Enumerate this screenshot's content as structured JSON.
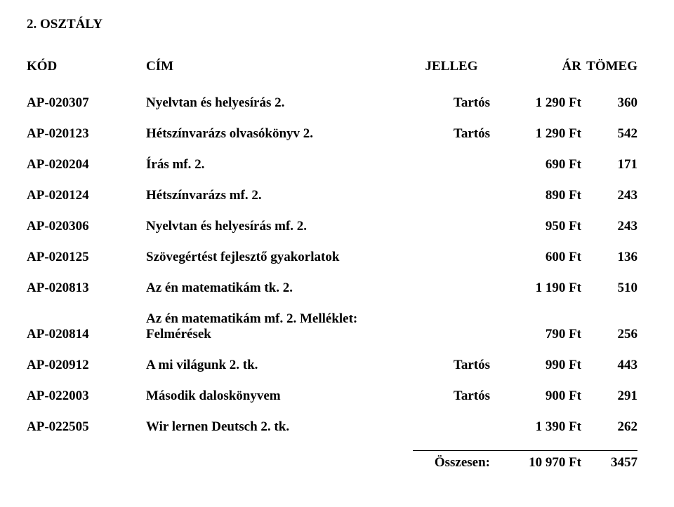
{
  "section_title": "2. OSZTÁLY",
  "headers": {
    "code": "KÓD",
    "title": "CÍM",
    "type": "JELLEG",
    "price": "ÁR",
    "weight": "TÖMEG"
  },
  "rows": [
    {
      "code": "AP-020307",
      "title": "Nyelvtan és helyesírás 2.",
      "type": "Tartós",
      "price": "1 290 Ft",
      "weight": "360"
    },
    {
      "code": "AP-020123",
      "title": "Hétszínvarázs olvasókönyv 2.",
      "type": "Tartós",
      "price": "1 290 Ft",
      "weight": "542"
    },
    {
      "code": "AP-020204",
      "title": "Írás mf. 2.",
      "type": "",
      "price": "690 Ft",
      "weight": "171"
    },
    {
      "code": "AP-020124",
      "title": "Hétszínvarázs mf. 2.",
      "type": "",
      "price": "890 Ft",
      "weight": "243"
    },
    {
      "code": "AP-020306",
      "title": "Nyelvtan és helyesírás mf. 2.",
      "type": "",
      "price": "950 Ft",
      "weight": "243"
    },
    {
      "code": "AP-020125",
      "title": "Szövegértést fejlesztő gyakorlatok",
      "type": "",
      "price": "600 Ft",
      "weight": "136"
    },
    {
      "code": "AP-020813",
      "title": "Az én matematikám tk. 2.",
      "type": "",
      "price": "1 190 Ft",
      "weight": "510"
    },
    {
      "code": "AP-020814",
      "title": "Az én matematikám mf. 2. Melléklet: Felmérések",
      "title_line1": "Az én matematikám mf. 2. Melléklet:",
      "title_line2": "Felmérések",
      "type": "",
      "price": "790 Ft",
      "weight": "256",
      "multiline": true
    },
    {
      "code": "AP-020912",
      "title": "A mi világunk 2. tk.",
      "type": "Tartós",
      "price": "990 Ft",
      "weight": "443"
    },
    {
      "code": "AP-022003",
      "title": "Második daloskönyvem",
      "type": "Tartós",
      "price": "900 Ft",
      "weight": "291"
    },
    {
      "code": "AP-022505",
      "title": "Wir lernen Deutsch 2. tk.",
      "type": "",
      "price": "1 390 Ft",
      "weight": "262"
    }
  ],
  "total": {
    "label": "Összesen:",
    "price": "10 970 Ft",
    "weight": "3457"
  }
}
